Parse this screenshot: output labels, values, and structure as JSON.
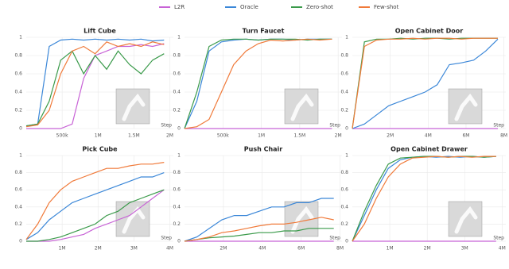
{
  "chart_data": [
    {
      "type": "line",
      "title": "Lift Cube",
      "x_label": "Step",
      "x": [
        0,
        160000,
        320000,
        480000,
        640000,
        800000,
        960000,
        1120000,
        1280000,
        1440000,
        1600000,
        1760000,
        1920000
      ],
      "xlim": [
        0,
        2050000
      ],
      "xticks": [
        {
          "value": 500000,
          "label": "500k"
        },
        {
          "value": 1000000,
          "label": "1M"
        },
        {
          "value": 1500000,
          "label": "1.5M"
        },
        {
          "value": 2000000,
          "label": "2M"
        }
      ],
      "ylim": [
        0,
        1
      ],
      "yticks": [
        0,
        0.2,
        0.4,
        0.6,
        0.8,
        1
      ],
      "grid": true,
      "series": [
        {
          "name": "L2R",
          "color": "#c863d6",
          "values": [
            0,
            0,
            0,
            0,
            0.05,
            0.55,
            0.8,
            0.85,
            0.9,
            0.9,
            0.92,
            0.9,
            0.93
          ]
        },
        {
          "name": "Oracle",
          "color": "#3b87d8",
          "values": [
            0.03,
            0.05,
            0.9,
            0.97,
            0.98,
            0.97,
            0.98,
            0.97,
            0.98,
            0.97,
            0.98,
            0.96,
            0.97
          ]
        },
        {
          "name": "Zero-shot",
          "color": "#3a9a4a",
          "values": [
            0.03,
            0.05,
            0.3,
            0.75,
            0.85,
            0.6,
            0.8,
            0.65,
            0.85,
            0.7,
            0.6,
            0.75,
            0.82
          ]
        },
        {
          "name": "Few-shot",
          "color": "#f07a3a",
          "values": [
            0.02,
            0.04,
            0.2,
            0.6,
            0.85,
            0.9,
            0.82,
            0.95,
            0.9,
            0.93,
            0.9,
            0.95,
            0.92
          ]
        }
      ]
    },
    {
      "type": "line",
      "title": "Turn Faucet",
      "x_label": "Step",
      "x": [
        0,
        160000,
        320000,
        480000,
        640000,
        800000,
        960000,
        1120000,
        1280000,
        1440000,
        1600000,
        1760000,
        1920000
      ],
      "xlim": [
        0,
        2050000
      ],
      "xticks": [
        {
          "value": 500000,
          "label": "500k"
        },
        {
          "value": 1000000,
          "label": "1M"
        },
        {
          "value": 1500000,
          "label": "1.5M"
        },
        {
          "value": 2000000,
          "label": "2M"
        }
      ],
      "ylim": [
        0,
        1
      ],
      "yticks": [
        0,
        0.2,
        0.4,
        0.6,
        0.8,
        1
      ],
      "grid": true,
      "series": [
        {
          "color": "#c863d6",
          "values": [
            0,
            0,
            0,
            0,
            0,
            0,
            0,
            0,
            0,
            0,
            0,
            0,
            0
          ]
        },
        {
          "color": "#3b87d8",
          "values": [
            0,
            0.3,
            0.85,
            0.95,
            0.97,
            0.98,
            0.97,
            0.98,
            0.98,
            0.97,
            0.98,
            0.98,
            0.98
          ]
        },
        {
          "color": "#3a9a4a",
          "values": [
            0,
            0.4,
            0.9,
            0.97,
            0.98,
            0.98,
            0.97,
            0.98,
            0.98,
            0.98,
            0.97,
            0.98,
            0.98
          ]
        },
        {
          "color": "#f07a3a",
          "values": [
            0,
            0.02,
            0.1,
            0.4,
            0.7,
            0.85,
            0.93,
            0.97,
            0.96,
            0.97,
            0.98,
            0.97,
            0.98
          ]
        }
      ]
    },
    {
      "type": "line",
      "title": "Open Cabinet Door",
      "x_label": "Step",
      "x": [
        0,
        640000,
        1280000,
        1920000,
        2560000,
        3200000,
        3840000,
        4480000,
        5120000,
        5760000,
        6400000,
        7040000,
        7680000
      ],
      "xlim": [
        0,
        8100000
      ],
      "xticks": [
        {
          "value": 2000000,
          "label": "2M"
        },
        {
          "value": 4000000,
          "label": "4M"
        },
        {
          "value": 6000000,
          "label": "6M"
        },
        {
          "value": 8000000,
          "label": "8M"
        }
      ],
      "ylim": [
        0,
        1
      ],
      "yticks": [
        0,
        0.2,
        0.4,
        0.6,
        0.8,
        1
      ],
      "grid": true,
      "series": [
        {
          "color": "#c863d6",
          "values": [
            0,
            0,
            0,
            0,
            0,
            0,
            0,
            0,
            0,
            0,
            0,
            0,
            0
          ]
        },
        {
          "color": "#3b87d8",
          "values": [
            0,
            0.05,
            0.15,
            0.25,
            0.3,
            0.35,
            0.4,
            0.48,
            0.7,
            0.72,
            0.75,
            0.85,
            0.98
          ]
        },
        {
          "color": "#3a9a4a",
          "values": [
            0,
            0.95,
            0.98,
            0.98,
            0.99,
            0.98,
            0.99,
            0.99,
            0.98,
            0.99,
            0.99,
            0.99,
            0.99
          ]
        },
        {
          "color": "#f07a3a",
          "values": [
            0,
            0.9,
            0.97,
            0.98,
            0.98,
            0.99,
            0.98,
            0.99,
            0.99,
            0.98,
            0.99,
            0.99,
            0.99
          ]
        }
      ]
    },
    {
      "type": "line",
      "title": "Pick Cube",
      "x_label": "Step",
      "x": [
        0,
        320000,
        640000,
        960000,
        1280000,
        1600000,
        1920000,
        2240000,
        2560000,
        2880000,
        3200000,
        3520000,
        3840000
      ],
      "xlim": [
        0,
        4100000
      ],
      "xticks": [
        {
          "value": 1000000,
          "label": "1M"
        },
        {
          "value": 2000000,
          "label": "2M"
        },
        {
          "value": 3000000,
          "label": "3M"
        },
        {
          "value": 4000000,
          "label": "4M"
        }
      ],
      "ylim": [
        0,
        1
      ],
      "yticks": [
        0,
        0.2,
        0.4,
        0.6,
        0.8,
        1
      ],
      "grid": true,
      "series": [
        {
          "color": "#c863d6",
          "values": [
            0,
            0,
            0,
            0.02,
            0.05,
            0.08,
            0.15,
            0.2,
            0.25,
            0.3,
            0.4,
            0.5,
            0.6
          ]
        },
        {
          "color": "#3b87d8",
          "values": [
            0.02,
            0.1,
            0.25,
            0.35,
            0.45,
            0.5,
            0.55,
            0.6,
            0.65,
            0.7,
            0.75,
            0.75,
            0.8
          ]
        },
        {
          "color": "#3a9a4a",
          "values": [
            0,
            0,
            0.02,
            0.05,
            0.1,
            0.15,
            0.2,
            0.3,
            0.35,
            0.45,
            0.5,
            0.55,
            0.6
          ]
        },
        {
          "color": "#f07a3a",
          "values": [
            0.02,
            0.2,
            0.45,
            0.6,
            0.7,
            0.75,
            0.8,
            0.85,
            0.85,
            0.88,
            0.9,
            0.9,
            0.92
          ]
        }
      ]
    },
    {
      "type": "line",
      "title": "Push Chair",
      "x_label": "Step",
      "x": [
        0,
        640000,
        1280000,
        1920000,
        2560000,
        3200000,
        3840000,
        4480000,
        5120000,
        5760000,
        6400000,
        7040000,
        7680000
      ],
      "xlim": [
        0,
        8100000
      ],
      "xticks": [
        {
          "value": 2000000,
          "label": "2M"
        },
        {
          "value": 4000000,
          "label": "4M"
        },
        {
          "value": 6000000,
          "label": "6M"
        },
        {
          "value": 8000000,
          "label": "8M"
        }
      ],
      "ylim": [
        0,
        1
      ],
      "yticks": [
        0,
        0.2,
        0.4,
        0.6,
        0.8,
        1
      ],
      "grid": true,
      "series": [
        {
          "color": "#c863d6",
          "values": [
            0,
            0,
            0,
            0,
            0,
            0,
            0,
            0,
            0,
            0,
            0,
            0,
            0
          ]
        },
        {
          "color": "#3b87d8",
          "values": [
            0,
            0.05,
            0.15,
            0.25,
            0.3,
            0.3,
            0.35,
            0.4,
            0.4,
            0.45,
            0.45,
            0.5,
            0.5
          ]
        },
        {
          "color": "#3a9a4a",
          "values": [
            0,
            0.02,
            0.04,
            0.05,
            0.06,
            0.08,
            0.1,
            0.1,
            0.12,
            0.12,
            0.15,
            0.15,
            0.15
          ]
        },
        {
          "color": "#f07a3a",
          "values": [
            0,
            0.02,
            0.05,
            0.1,
            0.12,
            0.15,
            0.18,
            0.2,
            0.2,
            0.22,
            0.25,
            0.28,
            0.25
          ]
        }
      ]
    },
    {
      "type": "line",
      "title": "Open Cabinet Drawer",
      "x_label": "Step",
      "x": [
        0,
        320000,
        640000,
        960000,
        1280000,
        1600000,
        1920000,
        2240000,
        2560000,
        2880000,
        3200000,
        3520000,
        3840000
      ],
      "xlim": [
        0,
        4100000
      ],
      "xticks": [
        {
          "value": 1000000,
          "label": "1M"
        },
        {
          "value": 2000000,
          "label": "2M"
        },
        {
          "value": 3000000,
          "label": "3M"
        },
        {
          "value": 4000000,
          "label": "4M"
        }
      ],
      "ylim": [
        0,
        1
      ],
      "yticks": [
        0,
        0.2,
        0.4,
        0.6,
        0.8,
        1
      ],
      "grid": true,
      "series": [
        {
          "color": "#c863d6",
          "values": [
            0,
            0,
            0,
            0,
            0,
            0,
            0,
            0,
            0,
            0,
            0,
            0,
            0
          ]
        },
        {
          "color": "#3b87d8",
          "values": [
            0,
            0.3,
            0.6,
            0.85,
            0.95,
            0.98,
            0.99,
            0.98,
            0.99,
            0.98,
            0.99,
            0.98,
            0.99
          ]
        },
        {
          "color": "#3a9a4a",
          "values": [
            0,
            0.35,
            0.65,
            0.9,
            0.97,
            0.98,
            0.99,
            0.99,
            0.98,
            0.99,
            0.99,
            0.98,
            0.99
          ]
        },
        {
          "color": "#f07a3a",
          "values": [
            0,
            0.2,
            0.5,
            0.75,
            0.9,
            0.97,
            0.98,
            0.99,
            0.98,
            0.99,
            0.98,
            0.99,
            0.99
          ]
        }
      ]
    }
  ]
}
